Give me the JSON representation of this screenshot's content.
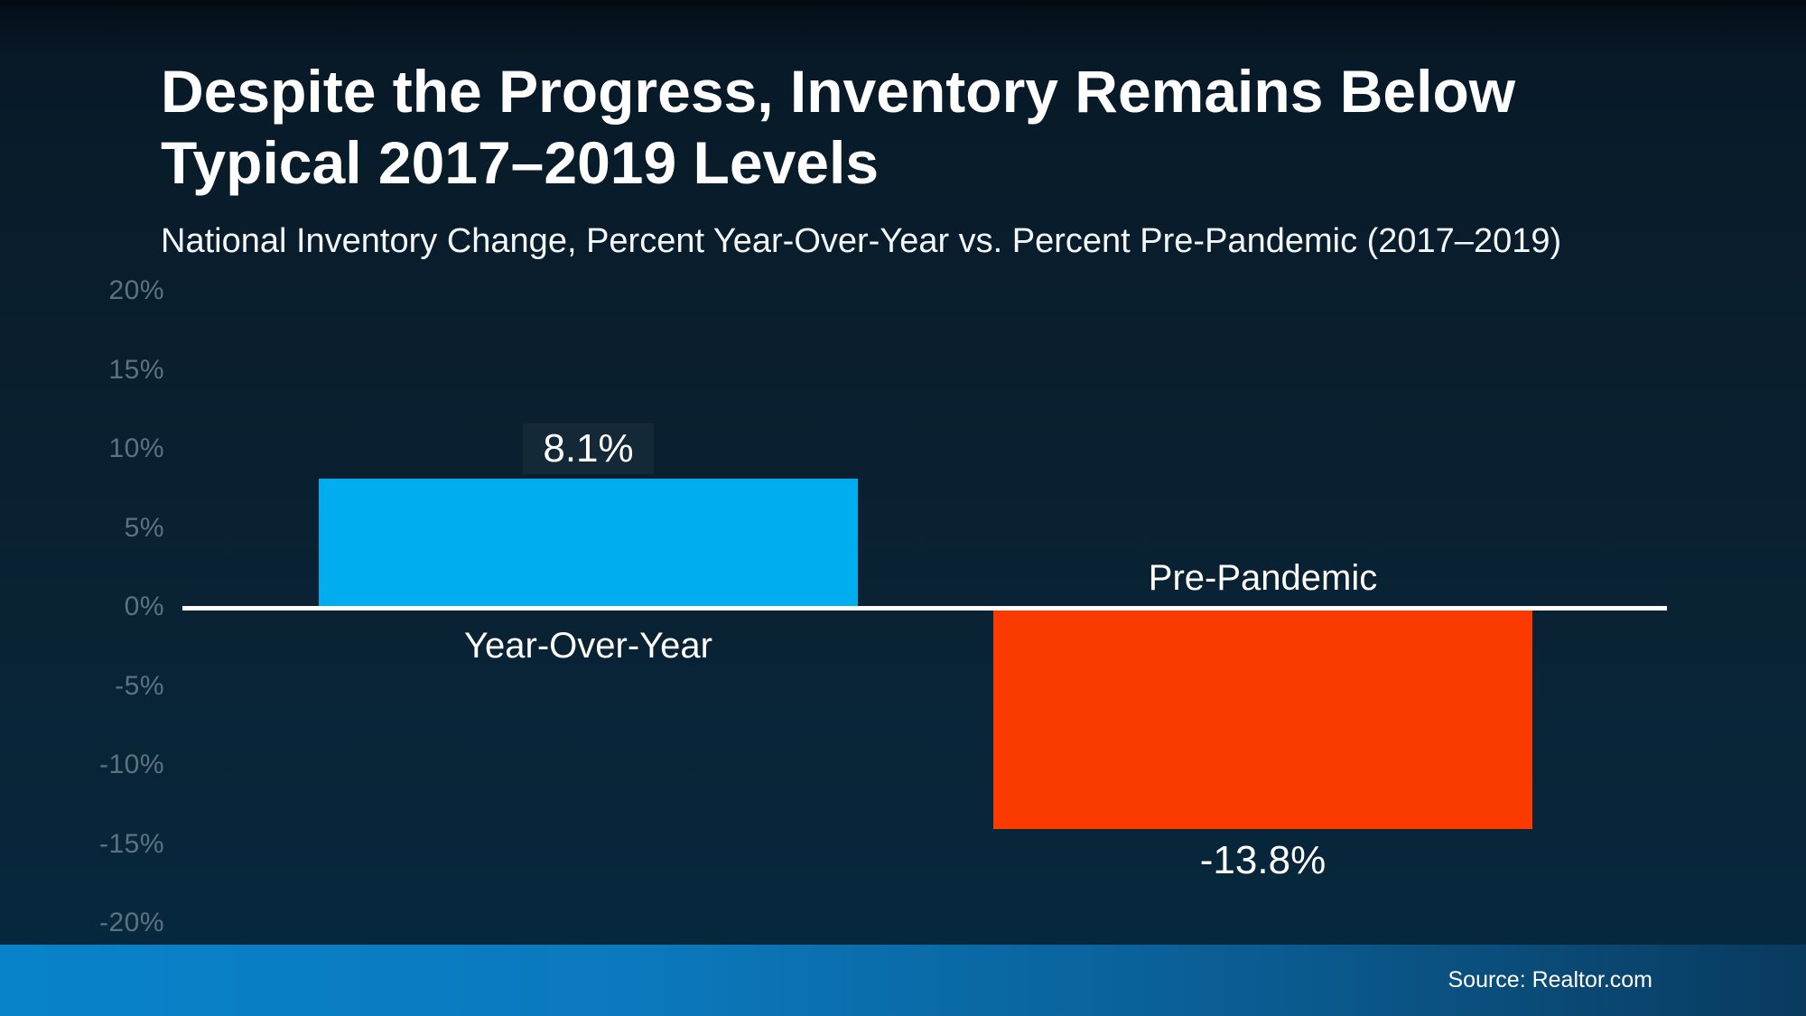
{
  "header": {
    "title": "Despite the Progress, Inventory Remains Below Typical 2017–2019 Levels",
    "subtitle": "National Inventory Change, Percent Year-Over-Year vs. Percent Pre-Pandemic (2017–2019)"
  },
  "chart_data": {
    "type": "bar",
    "title": "Despite the Progress, Inventory Remains Below Typical 2017–2019 Levels",
    "subtitle": "National Inventory Change, Percent Year-Over-Year vs. Percent Pre-Pandemic (2017–2019)",
    "categories": [
      "Year-Over-Year",
      "Pre-Pandemic"
    ],
    "values": [
      8.1,
      -13.8
    ],
    "value_labels": [
      "8.1%",
      "-13.8%"
    ],
    "bar_colors": [
      "#00adee",
      "#fb3a00"
    ],
    "ylim": [
      -20,
      20
    ],
    "ytick_values": [
      20,
      15,
      10,
      5,
      0,
      -5,
      -10,
      -15,
      -20
    ],
    "ytick_labels": [
      "20%",
      "15%",
      "10%",
      "5%",
      "0%",
      "-5%",
      "-10%",
      "-15%",
      "-20%"
    ],
    "grid": false,
    "zero_line_color": "#ffffff",
    "legend": "none",
    "xlabel": "",
    "ylabel": ""
  },
  "footer": {
    "source": "Source: Realtor.com"
  },
  "colors": {
    "background_top": "#081a28",
    "background_bottom": "#06293f",
    "tick_label": "#5d7280",
    "footer_gradient_left": "#0882ca",
    "footer_gradient_right": "#093a5e",
    "text": "#ffffff"
  }
}
